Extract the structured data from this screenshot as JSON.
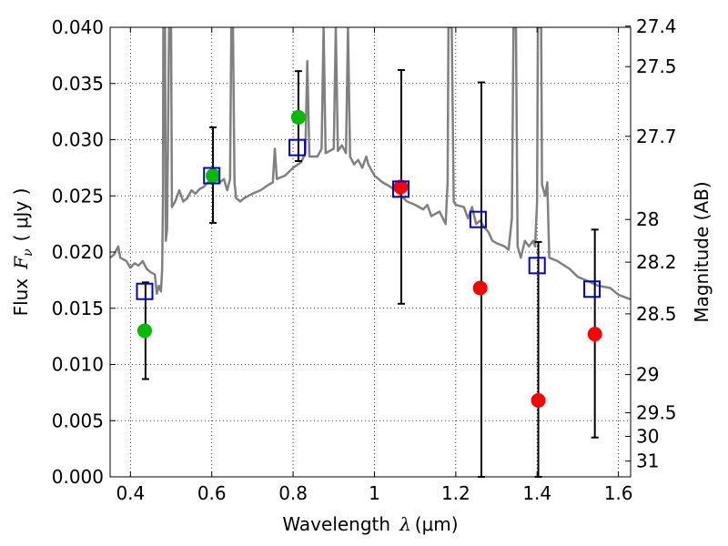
{
  "chart_data": {
    "type": "scatter",
    "xlabel": "Wavelength",
    "xlabel_symbol": "λ",
    "xlabel_unit": "(μm)",
    "ylabel": "Flux",
    "ylabel_symbol": "F",
    "ylabel_sub": "ν",
    "ylabel_unit": "( μJy )",
    "y2label": "Magnitude (AB)",
    "xlim": [
      0.35,
      1.63
    ],
    "ylim": [
      0.0,
      0.04
    ],
    "grid": true,
    "x_ticks": [
      {
        "v": 0.4,
        "label": "0.4"
      },
      {
        "v": 0.6,
        "label": "0.6"
      },
      {
        "v": 0.8,
        "label": "0.8"
      },
      {
        "v": 1.0,
        "label": "1"
      },
      {
        "v": 1.2,
        "label": "1.2"
      },
      {
        "v": 1.4,
        "label": "1.4"
      },
      {
        "v": 1.6,
        "label": "1.6"
      }
    ],
    "y_ticks": [
      {
        "v": 0.0,
        "label": "0.000"
      },
      {
        "v": 0.005,
        "label": "0.005"
      },
      {
        "v": 0.01,
        "label": "0.010"
      },
      {
        "v": 0.015,
        "label": "0.015"
      },
      {
        "v": 0.02,
        "label": "0.020"
      },
      {
        "v": 0.025,
        "label": "0.025"
      },
      {
        "v": 0.03,
        "label": "0.030"
      },
      {
        "v": 0.035,
        "label": "0.035"
      },
      {
        "v": 0.04,
        "label": "0.040"
      }
    ],
    "y2_ticks": [
      {
        "flux": 0.0401,
        "label": "27.4"
      },
      {
        "flux": 0.0365,
        "label": "27.5"
      },
      {
        "flux": 0.0303,
        "label": "27.7"
      },
      {
        "flux": 0.0229,
        "label": "28"
      },
      {
        "flux": 0.0191,
        "label": "28.2"
      },
      {
        "flux": 0.0145,
        "label": "28.5"
      },
      {
        "flux": 0.0091,
        "label": "29"
      },
      {
        "flux": 0.0057,
        "label": "29.5"
      },
      {
        "flux": 0.0036,
        "label": "30"
      },
      {
        "flux": 0.0014,
        "label": "31"
      }
    ],
    "series": [
      {
        "kind": "line",
        "color": "#808080",
        "points": [
          [
            0.35,
            0.0195
          ],
          [
            0.36,
            0.0198
          ],
          [
            0.37,
            0.0205
          ],
          [
            0.375,
            0.0195
          ],
          [
            0.39,
            0.0192
          ],
          [
            0.4,
            0.0186
          ],
          [
            0.41,
            0.019
          ],
          [
            0.42,
            0.0188
          ],
          [
            0.43,
            0.0192
          ],
          [
            0.44,
            0.0185
          ],
          [
            0.45,
            0.0182
          ],
          [
            0.46,
            0.018
          ],
          [
            0.465,
            0.0163
          ],
          [
            0.47,
            0.017
          ],
          [
            0.475,
            0.0165
          ],
          [
            0.478,
            0.0185
          ],
          [
            0.48,
            0.025
          ],
          [
            0.481,
            0.04
          ],
          [
            0.485,
            0.04
          ],
          [
            0.487,
            0.021
          ],
          [
            0.49,
            0.022
          ],
          [
            0.495,
            0.04
          ],
          [
            0.5,
            0.04
          ],
          [
            0.502,
            0.024
          ],
          [
            0.51,
            0.0245
          ],
          [
            0.52,
            0.0255
          ],
          [
            0.53,
            0.0245
          ],
          [
            0.54,
            0.0248
          ],
          [
            0.55,
            0.0255
          ],
          [
            0.56,
            0.0252
          ],
          [
            0.57,
            0.0256
          ],
          [
            0.58,
            0.0258
          ],
          [
            0.59,
            0.0262
          ],
          [
            0.6,
            0.0262
          ],
          [
            0.61,
            0.0265
          ],
          [
            0.62,
            0.0262
          ],
          [
            0.63,
            0.0265
          ],
          [
            0.638,
            0.0255
          ],
          [
            0.645,
            0.0265
          ],
          [
            0.648,
            0.04
          ],
          [
            0.652,
            0.04
          ],
          [
            0.656,
            0.0262
          ],
          [
            0.66,
            0.0248
          ],
          [
            0.67,
            0.0245
          ],
          [
            0.68,
            0.0248
          ],
          [
            0.69,
            0.025
          ],
          [
            0.7,
            0.0252
          ],
          [
            0.72,
            0.0255
          ],
          [
            0.74,
            0.026
          ],
          [
            0.75,
            0.0262
          ],
          [
            0.755,
            0.0292
          ],
          [
            0.76,
            0.0265
          ],
          [
            0.78,
            0.0268
          ],
          [
            0.8,
            0.0275
          ],
          [
            0.82,
            0.028
          ],
          [
            0.83,
            0.0288
          ],
          [
            0.835,
            0.037
          ],
          [
            0.84,
            0.0285
          ],
          [
            0.86,
            0.0285
          ],
          [
            0.87,
            0.0292
          ],
          [
            0.875,
            0.04
          ],
          [
            0.88,
            0.0288
          ],
          [
            0.89,
            0.029
          ],
          [
            0.9,
            0.0292
          ],
          [
            0.905,
            0.04
          ],
          [
            0.91,
            0.029
          ],
          [
            0.92,
            0.0295
          ],
          [
            0.93,
            0.0288
          ],
          [
            0.935,
            0.04
          ],
          [
            0.94,
            0.0285
          ],
          [
            0.95,
            0.0278
          ],
          [
            0.96,
            0.0282
          ],
          [
            0.97,
            0.0275
          ],
          [
            0.98,
            0.0285
          ],
          [
            0.985,
            0.0278
          ],
          [
            1.0,
            0.0268
          ],
          [
            1.02,
            0.0262
          ],
          [
            1.04,
            0.0258
          ],
          [
            1.06,
            0.0252
          ],
          [
            1.08,
            0.0245
          ],
          [
            1.1,
            0.0242
          ],
          [
            1.12,
            0.0238
          ],
          [
            1.13,
            0.0242
          ],
          [
            1.14,
            0.0232
          ],
          [
            1.16,
            0.0236
          ],
          [
            1.175,
            0.0225
          ],
          [
            1.18,
            0.0262
          ],
          [
            1.182,
            0.04
          ],
          [
            1.19,
            0.04
          ],
          [
            1.195,
            0.0245
          ],
          [
            1.2,
            0.0242
          ],
          [
            1.22,
            0.024
          ],
          [
            1.23,
            0.023
          ],
          [
            1.24,
            0.024
          ],
          [
            1.25,
            0.0225
          ],
          [
            1.26,
            0.0228
          ],
          [
            1.27,
            0.0222
          ],
          [
            1.28,
            0.0218
          ],
          [
            1.29,
            0.021
          ],
          [
            1.3,
            0.0208
          ],
          [
            1.32,
            0.0205
          ],
          [
            1.33,
            0.0202
          ],
          [
            1.338,
            0.023
          ],
          [
            1.342,
            0.04
          ],
          [
            1.348,
            0.04
          ],
          [
            1.352,
            0.0205
          ],
          [
            1.36,
            0.0195
          ],
          [
            1.37,
            0.021
          ],
          [
            1.38,
            0.0205
          ],
          [
            1.39,
            0.021
          ],
          [
            1.395,
            0.0205
          ],
          [
            1.4,
            0.0245
          ],
          [
            1.402,
            0.04
          ],
          [
            1.41,
            0.04
          ],
          [
            1.412,
            0.026
          ],
          [
            1.42,
            0.025
          ],
          [
            1.425,
            0.0262
          ],
          [
            1.43,
            0.0195
          ],
          [
            1.45,
            0.0192
          ],
          [
            1.48,
            0.0185
          ],
          [
            1.5,
            0.0178
          ],
          [
            1.52,
            0.0175
          ],
          [
            1.55,
            0.017
          ],
          [
            1.58,
            0.0168
          ],
          [
            1.6,
            0.0162
          ],
          [
            1.63,
            0.0158
          ]
        ]
      },
      {
        "kind": "squares",
        "color": "#0000cc",
        "points": [
          [
            0.435,
            0.0165
          ],
          [
            0.6,
            0.0268
          ],
          [
            0.81,
            0.0293
          ],
          [
            1.065,
            0.0256
          ],
          [
            1.255,
            0.0229
          ],
          [
            1.4,
            0.0188
          ],
          [
            1.535,
            0.0167
          ]
        ]
      },
      {
        "kind": "points",
        "color": "#00bb00",
        "points": [
          [
            0.435,
            0.013
          ],
          [
            0.603,
            0.0268
          ],
          [
            0.813,
            0.032
          ]
        ]
      },
      {
        "kind": "points",
        "color": "#ff0000",
        "points": [
          [
            1.065,
            0.0258
          ],
          [
            1.26,
            0.0168
          ],
          [
            1.403,
            0.0068
          ],
          [
            1.542,
            0.0127
          ]
        ]
      },
      {
        "kind": "errorbars",
        "color": "#000000",
        "bars": [
          {
            "x": 0.437,
            "low": 0.0087,
            "high": 0.0173
          },
          {
            "x": 0.603,
            "low": 0.0226,
            "high": 0.0311
          },
          {
            "x": 0.813,
            "low": 0.0281,
            "high": 0.0361
          },
          {
            "x": 1.066,
            "low": 0.0154,
            "high": 0.0362
          },
          {
            "x": 1.263,
            "low": 0.0,
            "high": 0.0351
          },
          {
            "x": 1.403,
            "low": 0.0,
            "high": 0.0209
          },
          {
            "x": 1.542,
            "low": 0.0035,
            "high": 0.022
          }
        ]
      }
    ]
  }
}
